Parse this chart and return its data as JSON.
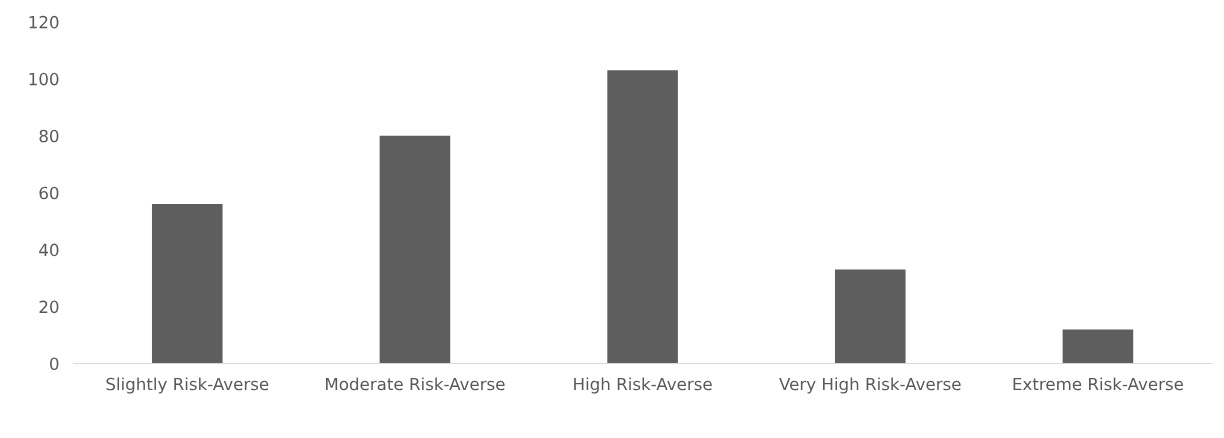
{
  "chart_data": {
    "type": "bar",
    "categories": [
      "Slightly Risk-Averse",
      "Moderate Risk-Averse",
      "High Risk-Averse",
      "Very High Risk-Averse",
      "Extreme Risk-Averse"
    ],
    "values": [
      56,
      80,
      103,
      33,
      12
    ],
    "color": "#5e5e5e",
    "ylim": [
      0,
      120
    ],
    "yticks": [
      0,
      20,
      40,
      60,
      80,
      100,
      120
    ],
    "grid": false
  }
}
